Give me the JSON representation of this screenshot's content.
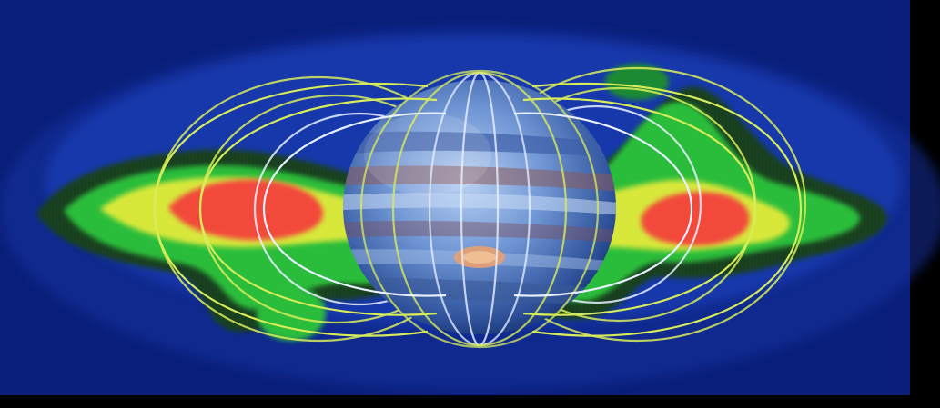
{
  "image": {
    "subject": "jupiter-radiation-belts-with-magnetic-field-lines",
    "colors": {
      "background_navy": "#0a1f7a",
      "background_blue": "#1a3fb0",
      "belt_black": "#0b1a1a",
      "belt_green": "#2bbd3b",
      "belt_yellow": "#d8e83a",
      "belt_red": "#f24a3a",
      "field_line_yellow": "#d8ec5a",
      "field_line_white": "#e8f0ff",
      "planet_blue": "#5b82c9",
      "planet_band_brown": "#8a5a5a",
      "planet_spot": "#e8a070"
    },
    "icons": {
      "planet": "jupiter-icon",
      "field": "magnetic-field-lines-icon",
      "belts": "radiation-belt-icon"
    }
  }
}
